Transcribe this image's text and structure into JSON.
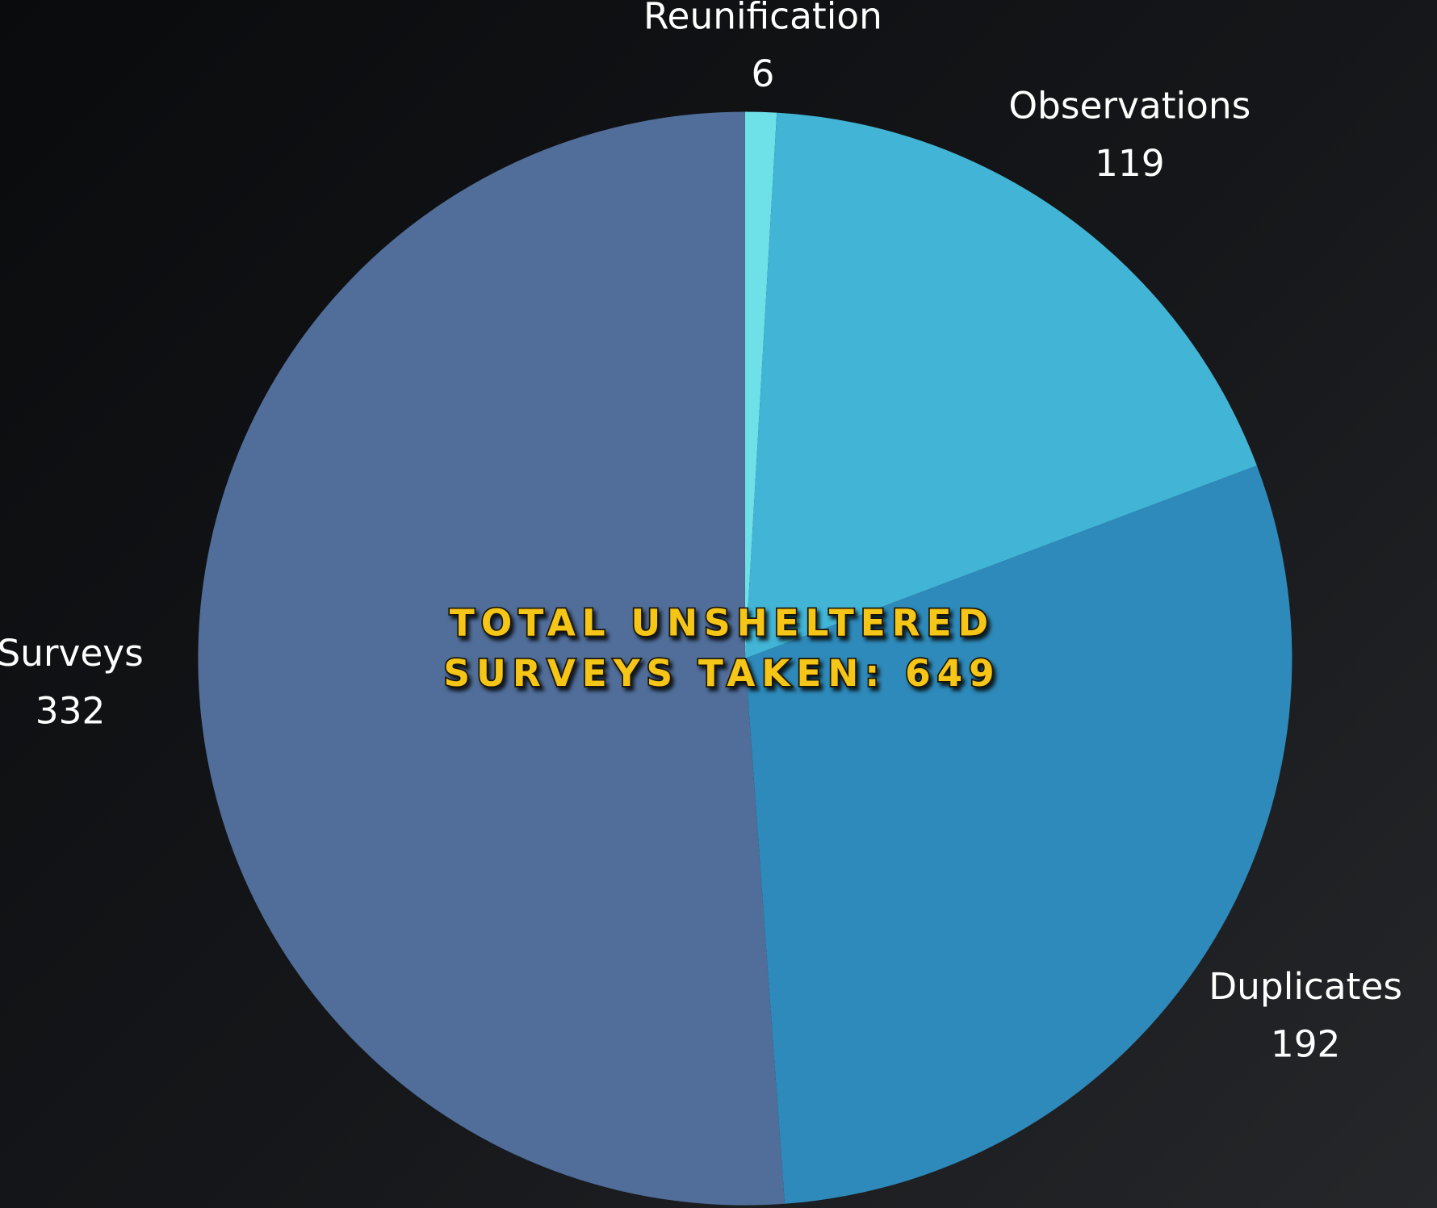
{
  "chart_data": {
    "type": "pie",
    "categories": [
      "Reunification",
      "Observations",
      "Duplicates",
      "Surveys"
    ],
    "values": [
      6,
      119,
      192,
      332
    ],
    "colors": [
      "#6ee0e8",
      "#42b4d6",
      "#2e8aba",
      "#506e99"
    ],
    "annotation": [
      "TOTAL UNSHELTERED",
      "SURVEYS TAKEN: 649"
    ]
  }
}
